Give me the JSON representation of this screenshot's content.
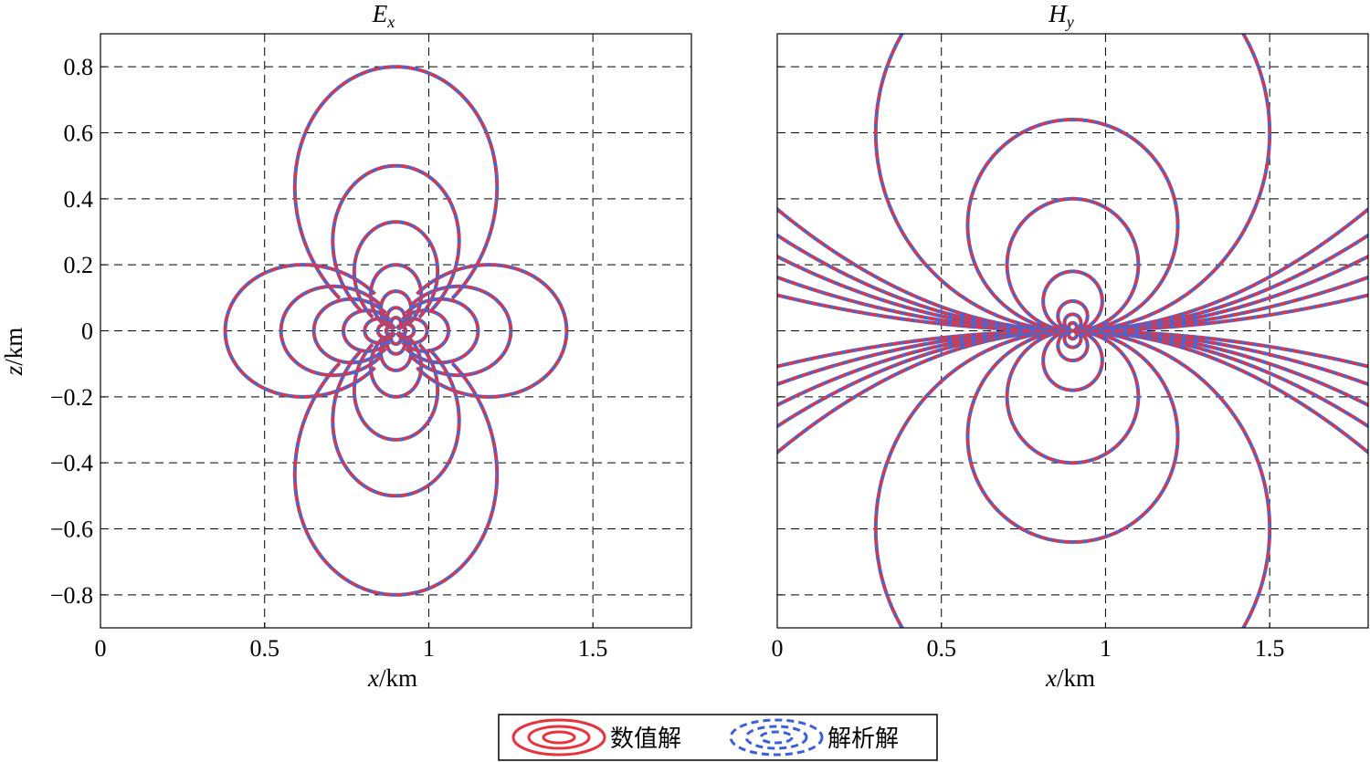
{
  "chart_data": [
    {
      "type": "contour",
      "title_main": "E",
      "title_sub": "x",
      "xlabel_var": "x",
      "xlabel_unit": "/km",
      "ylabel_var": "z",
      "ylabel_unit": "/km",
      "xlim": [
        0,
        1.8
      ],
      "ylim": [
        -0.9,
        0.9
      ],
      "xticks": [
        0,
        0.5,
        1,
        1.5
      ],
      "xtick_labels": [
        "0",
        "0.5",
        "1",
        "1.5"
      ],
      "yticks": [
        0.8,
        0.6,
        0.4,
        0.2,
        0,
        -0.2,
        -0.4,
        -0.6,
        -0.8
      ],
      "ytick_labels": [
        "0.8",
        "0.6",
        "0.4",
        "0.2",
        "0",
        "−0.2",
        "−0.4",
        "−0.6",
        "−0.8"
      ],
      "grid": true,
      "source_x": 0.9,
      "source_z": 0,
      "field": "quadrupole",
      "contour_levels_horizontal_lobe": [
        0.52,
        0.35,
        0.25,
        0.16,
        0.095,
        0.055,
        0.03
      ],
      "contour_levels_vertical_lobe": [
        0.8,
        0.5,
        0.33,
        0.2,
        0.12,
        0.07,
        0.04
      ]
    },
    {
      "type": "contour",
      "title_main": "H",
      "title_sub": "y",
      "xlabel_var": "x",
      "xlabel_unit": "/km",
      "xlim": [
        0,
        1.8
      ],
      "ylim": [
        -0.9,
        0.9
      ],
      "xticks": [
        0,
        0.5,
        1,
        1.5
      ],
      "xtick_labels": [
        "0",
        "0.5",
        "1",
        "1.5"
      ],
      "yticks": [
        0.8,
        0.6,
        0.4,
        0.2,
        0,
        -0.2,
        -0.4,
        -0.6,
        -0.8
      ],
      "grid": true,
      "source_x": 0.9,
      "source_z": 0,
      "field": "dipole",
      "contour_levels_dipole": [
        0.6,
        0.32,
        0.2,
        0.09,
        0.045,
        0.025,
        0.012
      ],
      "horizontal_streak_levels": [
        2.2,
        2.8,
        3.6,
        5,
        7.5
      ]
    }
  ],
  "legend": {
    "items": [
      {
        "label": "数值解",
        "color": "#e8333c",
        "style": "solid"
      },
      {
        "label": "解析解",
        "color": "#3b5fd8",
        "style": "dashed"
      }
    ]
  },
  "colors": {
    "numeric": "#e8333c",
    "analytic": "#4a64d0",
    "grid": "#000000"
  }
}
